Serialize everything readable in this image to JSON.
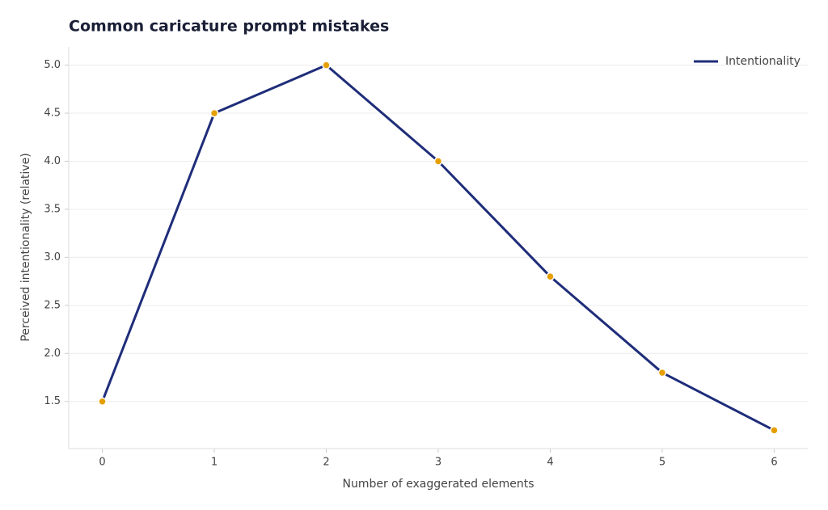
{
  "chart_data": {
    "type": "line",
    "title": "Common caricature prompt mistakes",
    "x_label": "Number of exaggerated elements",
    "y_label": "Perceived intentionality (relative)",
    "x": [
      0,
      1,
      2,
      3,
      4,
      5,
      6
    ],
    "series": [
      {
        "name": "Intentionality",
        "color": "#1f2d7a",
        "marker_color": "#e69f00",
        "values": [
          1.5,
          4.5,
          5.0,
          4.0,
          2.8,
          1.8,
          1.2
        ]
      }
    ],
    "xlim": [
      -0.3,
      6.3
    ],
    "xticks": [
      0,
      1,
      2,
      3,
      4,
      5,
      6
    ],
    "ylim": [
      1.01,
      5.19
    ],
    "yticks": [
      1.5,
      {
        "value": 2,
        "label": "2.0"
      },
      2.5,
      {
        "value": 3,
        "label": "3.0"
      },
      3.5,
      {
        "value": 4,
        "label": "4.0"
      },
      4.5,
      {
        "value": 5,
        "label": "5.0"
      }
    ],
    "grid": true,
    "legend": "upper right"
  }
}
